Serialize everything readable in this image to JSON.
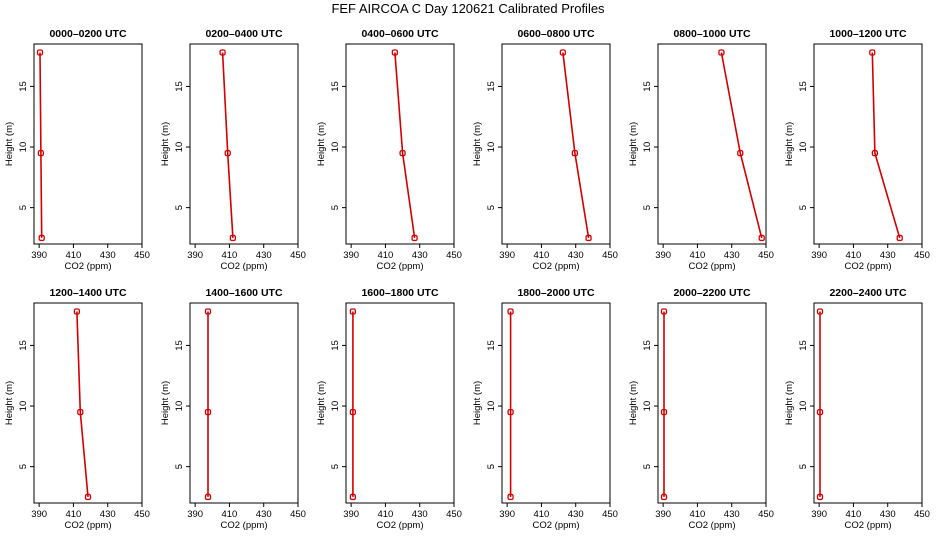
{
  "title": "FEF AIRCOA C  Day 120621  Calibrated Profiles",
  "colors": {
    "profile": "#d40000",
    "axis": "#000000"
  },
  "chart_data": [
    {
      "type": "line",
      "title": "0000–0200 UTC",
      "xlabel": "CO2 (ppm)",
      "ylabel": "Height (m)",
      "xlim": [
        387,
        450
      ],
      "ylim": [
        2,
        18.5
      ],
      "xticks": [
        390,
        410,
        430,
        450
      ],
      "yticks": [
        5,
        10,
        15
      ],
      "x": [
        390.5,
        391.0,
        391.5
      ],
      "y": [
        17.8,
        9.5,
        2.5
      ]
    },
    {
      "type": "line",
      "title": "0200–0400 UTC",
      "xlabel": "CO2 (ppm)",
      "ylabel": "Height (m)",
      "xlim": [
        387,
        450
      ],
      "ylim": [
        2,
        18.5
      ],
      "xticks": [
        390,
        410,
        430,
        450
      ],
      "yticks": [
        5,
        10,
        15
      ],
      "x": [
        406.0,
        409.0,
        412.0
      ],
      "y": [
        17.8,
        9.5,
        2.5
      ]
    },
    {
      "type": "line",
      "title": "0400–0600 UTC",
      "xlabel": "CO2 (ppm)",
      "ylabel": "Height (m)",
      "xlim": [
        387,
        450
      ],
      "ylim": [
        2,
        18.5
      ],
      "xticks": [
        390,
        410,
        430,
        450
      ],
      "yticks": [
        5,
        10,
        15
      ],
      "x": [
        415.5,
        420.0,
        427.0
      ],
      "y": [
        17.8,
        9.5,
        2.5
      ]
    },
    {
      "type": "line",
      "title": "0600–0800 UTC",
      "xlabel": "CO2 (ppm)",
      "ylabel": "Height (m)",
      "xlim": [
        387,
        450
      ],
      "ylim": [
        2,
        18.5
      ],
      "xticks": [
        390,
        410,
        430,
        450
      ],
      "yticks": [
        5,
        10,
        15
      ],
      "x": [
        422.5,
        429.5,
        437.5
      ],
      "y": [
        17.8,
        9.5,
        2.5
      ]
    },
    {
      "type": "line",
      "title": "0800–1000 UTC",
      "xlabel": "CO2 (ppm)",
      "ylabel": "Height (m)",
      "xlim": [
        387,
        450
      ],
      "ylim": [
        2,
        18.5
      ],
      "xticks": [
        390,
        410,
        430,
        450
      ],
      "yticks": [
        5,
        10,
        15
      ],
      "x": [
        424.0,
        435.0,
        447.5
      ],
      "y": [
        17.8,
        9.5,
        2.5
      ]
    },
    {
      "type": "line",
      "title": "1000–1200 UTC",
      "xlabel": "CO2 (ppm)",
      "ylabel": "Height (m)",
      "xlim": [
        387,
        450
      ],
      "ylim": [
        2,
        18.5
      ],
      "xticks": [
        390,
        410,
        430,
        450
      ],
      "yticks": [
        5,
        10,
        15
      ],
      "x": [
        421.0,
        422.5,
        437.0
      ],
      "y": [
        17.8,
        9.5,
        2.5
      ]
    },
    {
      "type": "line",
      "title": "1200–1400 UTC",
      "xlabel": "CO2 (ppm)",
      "ylabel": "Height (m)",
      "xlim": [
        387,
        450
      ],
      "ylim": [
        2,
        18.5
      ],
      "xticks": [
        390,
        410,
        430,
        450
      ],
      "yticks": [
        5,
        10,
        15
      ],
      "x": [
        412.0,
        414.0,
        418.5
      ],
      "y": [
        17.8,
        9.5,
        2.5
      ]
    },
    {
      "type": "line",
      "title": "1400–1600 UTC",
      "xlabel": "CO2 (ppm)",
      "ylabel": "Height (m)",
      "xlim": [
        387,
        450
      ],
      "ylim": [
        2,
        18.5
      ],
      "xticks": [
        390,
        410,
        430,
        450
      ],
      "yticks": [
        5,
        10,
        15
      ],
      "x": [
        397.5,
        397.5,
        397.5
      ],
      "y": [
        17.8,
        9.5,
        2.5
      ]
    },
    {
      "type": "line",
      "title": "1600–1800 UTC",
      "xlabel": "CO2 (ppm)",
      "ylabel": "Height (m)",
      "xlim": [
        387,
        450
      ],
      "ylim": [
        2,
        18.5
      ],
      "xticks": [
        390,
        410,
        430,
        450
      ],
      "yticks": [
        5,
        10,
        15
      ],
      "x": [
        391.0,
        391.0,
        391.0
      ],
      "y": [
        17.8,
        9.5,
        2.5
      ]
    },
    {
      "type": "line",
      "title": "1800–2000 UTC",
      "xlabel": "CO2 (ppm)",
      "ylabel": "Height (m)",
      "xlim": [
        387,
        450
      ],
      "ylim": [
        2,
        18.5
      ],
      "xticks": [
        390,
        410,
        430,
        450
      ],
      "yticks": [
        5,
        10,
        15
      ],
      "x": [
        392.0,
        392.0,
        392.0
      ],
      "y": [
        17.8,
        9.5,
        2.5
      ]
    },
    {
      "type": "line",
      "title": "2000–2200 UTC",
      "xlabel": "CO2 (ppm)",
      "ylabel": "Height (m)",
      "xlim": [
        387,
        450
      ],
      "ylim": [
        2,
        18.5
      ],
      "xticks": [
        390,
        410,
        430,
        450
      ],
      "yticks": [
        5,
        10,
        15
      ],
      "x": [
        390.5,
        390.5,
        390.5
      ],
      "y": [
        17.8,
        9.5,
        2.5
      ]
    },
    {
      "type": "line",
      "title": "2200–2400 UTC",
      "xlabel": "CO2 (ppm)",
      "ylabel": "Height (m)",
      "xlim": [
        387,
        450
      ],
      "ylim": [
        2,
        18.5
      ],
      "xticks": [
        390,
        410,
        430,
        450
      ],
      "yticks": [
        5,
        10,
        15
      ],
      "x": [
        390.5,
        390.5,
        390.5
      ],
      "y": [
        17.8,
        9.5,
        2.5
      ]
    }
  ]
}
